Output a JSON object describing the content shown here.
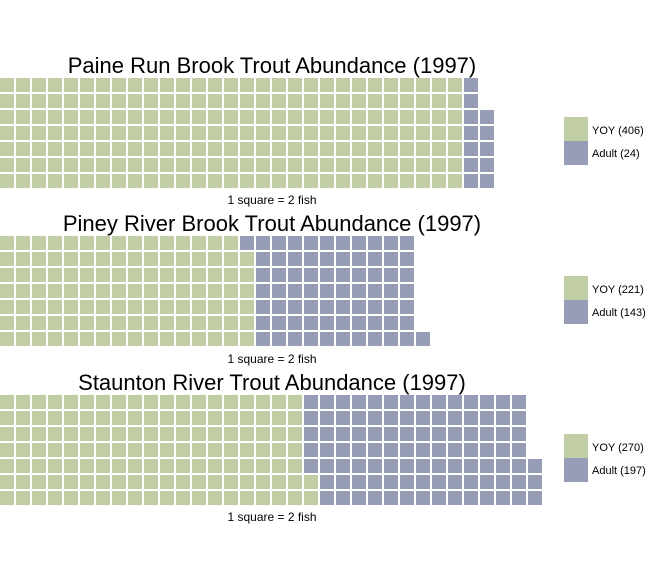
{
  "colors": {
    "yoy": "#c1cda4",
    "adult": "#979db6"
  },
  "chart_data": [
    {
      "type": "waffle",
      "title": "Paine Run Brook Trout Abundance (1997)",
      "caption": "1 square = 2 fish",
      "rows": 7,
      "series": [
        {
          "name": "YOY (406)",
          "value": 406
        },
        {
          "name": "Adult (24)",
          "value": 24
        }
      ]
    },
    {
      "type": "waffle",
      "title": "Piney River Brook Trout Abundance (1997)",
      "caption": "1 square = 2 fish",
      "rows": 7,
      "series": [
        {
          "name": "YOY (221)",
          "value": 221
        },
        {
          "name": "Adult (143)",
          "value": 143
        }
      ]
    },
    {
      "type": "waffle",
      "title": "Staunton River Trout Abundance (1997)",
      "caption": "1 square = 2 fish",
      "rows": 7,
      "series": [
        {
          "name": "YOY (270)",
          "value": 270
        },
        {
          "name": "Adult (197)",
          "value": 197
        }
      ]
    }
  ]
}
